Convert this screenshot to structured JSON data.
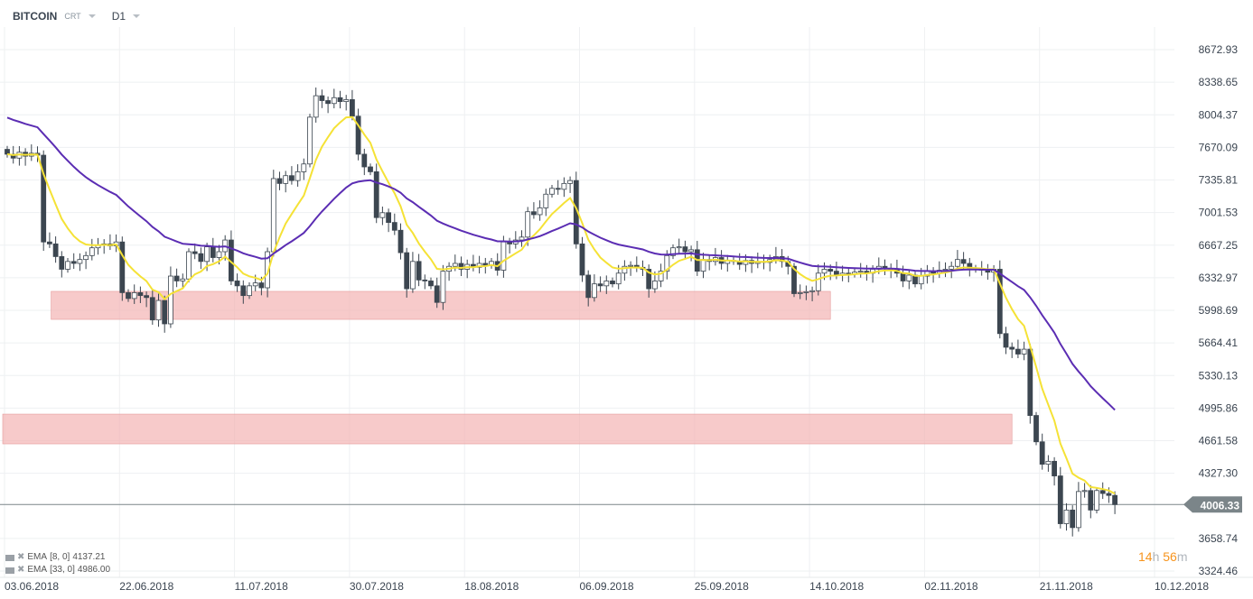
{
  "header": {
    "symbol": "BITCOIN",
    "chart_type": "CRT",
    "timeframe": "D1"
  },
  "legend": [
    {
      "name": "EMA",
      "params": "[8, 0]",
      "value": "4137.21"
    },
    {
      "name": "EMA",
      "params": "[33, 0]",
      "value": "4986.00"
    }
  ],
  "timer": {
    "hours": "14",
    "h_unit": "h",
    "minutes": "56",
    "m_unit": "m"
  },
  "current_price_label": "4006.33",
  "colors": {
    "ema8": "#f5e236",
    "ema33": "#5b2db3",
    "zone": "#f4b4b4",
    "bear": "#3c4650",
    "bull": "#ffffff",
    "price_tag": "#7b8589"
  },
  "chart_data": {
    "type": "candlestick",
    "title": "BITCOIN D1",
    "start_date": "03.06.2018",
    "closes": [
      7600,
      7560,
      7620,
      7580,
      7610,
      7590,
      6700,
      6680,
      6550,
      6420,
      6500,
      6480,
      6520,
      6560,
      6640,
      6670,
      6680,
      6660,
      6700,
      6180,
      6120,
      6180,
      6150,
      6130,
      5900,
      6100,
      5860,
      6350,
      6300,
      6320,
      6600,
      6580,
      6500,
      6650,
      6540,
      6600,
      6720,
      6300,
      6250,
      6150,
      6250,
      6280,
      6230,
      6600,
      7350,
      7300,
      7380,
      7330,
      7420,
      7500,
      7980,
      8200,
      8150,
      8120,
      8180,
      8140,
      8160,
      7990,
      7600,
      7470,
      7420,
      6950,
      7000,
      6900,
      6820,
      6590,
      6220,
      6500,
      6310,
      6300,
      6250,
      6080,
      6400,
      6450,
      6480,
      6420,
      6470,
      6440,
      6480,
      6460,
      6500,
      6410,
      6700,
      6680,
      6720,
      6750,
      7010,
      6980,
      7050,
      7190,
      7250,
      7240,
      7300,
      7330,
      6680,
      6360,
      6130,
      6270,
      6250,
      6300,
      6270,
      6380,
      6450,
      6460,
      6440,
      6420,
      6220,
      6300,
      6400,
      6560,
      6640,
      6650,
      6600,
      6620,
      6400,
      6520,
      6500,
      6540,
      6480,
      6510,
      6500,
      6470,
      6510,
      6480,
      6500,
      6490,
      6520,
      6550,
      6500,
      6450,
      6170,
      6180,
      6190,
      6200,
      6380,
      6420,
      6400,
      6360,
      6380,
      6370,
      6390,
      6400,
      6380,
      6420,
      6450,
      6430,
      6420,
      6380,
      6300,
      6360,
      6270,
      6350,
      6400,
      6380,
      6410,
      6420,
      6450,
      6520,
      6480,
      6430,
      6420,
      6410,
      6390,
      6420,
      5760,
      5620,
      5600,
      5550,
      5600,
      4920,
      4650,
      4420,
      4450,
      4300,
      3810,
      3950,
      3770,
      4140,
      4150,
      3950,
      4150,
      4120,
      4100,
      4006.33
    ],
    "first_open": 7650,
    "wick": 70,
    "indicators": [
      {
        "type": "EMA",
        "period": 8,
        "seed": 7600
      },
      {
        "type": "EMA",
        "period": 33,
        "seed": 8000
      }
    ],
    "zones": [
      {
        "from_day": 8,
        "to_day": 136,
        "low": 5906,
        "high": 6193
      },
      {
        "from_day": 0,
        "to_day": 166,
        "low": 4629,
        "high": 4934
      }
    ],
    "y_ticks": [
      "8672.93",
      "8338.65",
      "8004.37",
      "7670.09",
      "7335.81",
      "7001.53",
      "6667.25",
      "6332.97",
      "5998.69",
      "5664.41",
      "5330.13",
      "4995.86",
      "4661.58",
      "4327.30",
      "3658.74",
      "3324.46"
    ],
    "x_ticks": [
      {
        "label": "03.06.2018",
        "day": 0
      },
      {
        "label": "22.06.2018",
        "day": 19
      },
      {
        "label": "11.07.2018",
        "day": 38
      },
      {
        "label": "30.07.2018",
        "day": 57
      },
      {
        "label": "18.08.2018",
        "day": 76
      },
      {
        "label": "06.09.2018",
        "day": 95
      },
      {
        "label": "25.09.2018",
        "day": 114
      },
      {
        "label": "14.10.2018",
        "day": 133
      },
      {
        "label": "02.11.2018",
        "day": 152
      },
      {
        "label": "21.11.2018",
        "day": 171
      },
      {
        "label": "10.12.2018",
        "day": 190
      }
    ],
    "ylim": [
      3324.46,
      8672.93
    ],
    "current_price": 4006.33
  }
}
